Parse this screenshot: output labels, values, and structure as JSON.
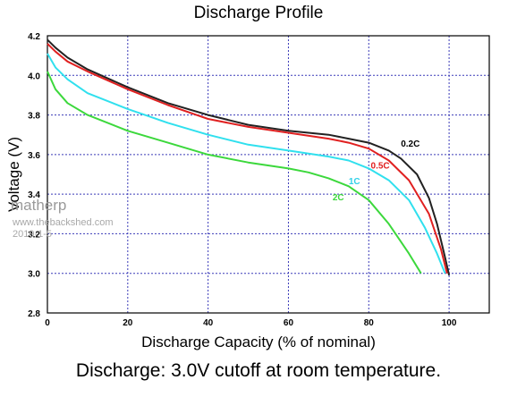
{
  "chart_data": {
    "type": "line",
    "title": "Discharge Profile",
    "xlabel": "Discharge Capacity (% of nominal)",
    "ylabel": "Voltage (V)",
    "xlim": [
      0,
      110
    ],
    "ylim": [
      2.8,
      4.2
    ],
    "xticks": [
      0,
      20,
      40,
      60,
      80,
      100
    ],
    "yticks": [
      2.8,
      3.0,
      3.2,
      3.4,
      3.6,
      3.8,
      4.0,
      4.2
    ],
    "grid": true,
    "series": [
      {
        "name": "0.2C",
        "color": "#222222",
        "label_color": "#000000",
        "x": [
          0,
          2,
          5,
          10,
          20,
          30,
          40,
          50,
          60,
          70,
          75,
          80,
          85,
          88,
          92,
          95,
          97,
          99,
          100
        ],
        "y": [
          4.18,
          4.14,
          4.09,
          4.03,
          3.94,
          3.86,
          3.8,
          3.75,
          3.72,
          3.7,
          3.68,
          3.66,
          3.62,
          3.58,
          3.5,
          3.38,
          3.25,
          3.08,
          2.99
        ]
      },
      {
        "name": "0.5C",
        "color": "#e02020",
        "label_color": "#e02020",
        "x": [
          0,
          2,
          5,
          10,
          20,
          30,
          40,
          50,
          60,
          70,
          75,
          80,
          85,
          90,
          95,
          98,
          99.5
        ],
        "y": [
          4.16,
          4.12,
          4.07,
          4.02,
          3.93,
          3.85,
          3.78,
          3.74,
          3.71,
          3.68,
          3.66,
          3.63,
          3.57,
          3.47,
          3.3,
          3.12,
          3.0
        ]
      },
      {
        "name": "1C",
        "color": "#30e0ee",
        "label_color": "#30d0e8",
        "x": [
          0,
          2,
          5,
          10,
          20,
          30,
          40,
          50,
          60,
          70,
          75,
          80,
          85,
          90,
          94,
          97,
          99
        ],
        "y": [
          4.11,
          4.04,
          3.98,
          3.91,
          3.83,
          3.76,
          3.7,
          3.65,
          3.62,
          3.59,
          3.57,
          3.53,
          3.47,
          3.37,
          3.23,
          3.1,
          3.0
        ]
      },
      {
        "name": "2C",
        "color": "#3cd83c",
        "label_color": "#3cd83c",
        "x": [
          0,
          2,
          5,
          10,
          20,
          30,
          40,
          50,
          60,
          65,
          70,
          75,
          80,
          85,
          90,
          93
        ],
        "y": [
          4.02,
          3.93,
          3.86,
          3.8,
          3.72,
          3.66,
          3.6,
          3.56,
          3.53,
          3.51,
          3.48,
          3.44,
          3.37,
          3.25,
          3.1,
          3.0
        ]
      }
    ]
  },
  "caption": "Discharge: 3.0V cutoff at room temperature.",
  "watermark": {
    "line1": "matherp",
    "line2": "www.thebackshed.com",
    "line3": "2019-1-5"
  }
}
